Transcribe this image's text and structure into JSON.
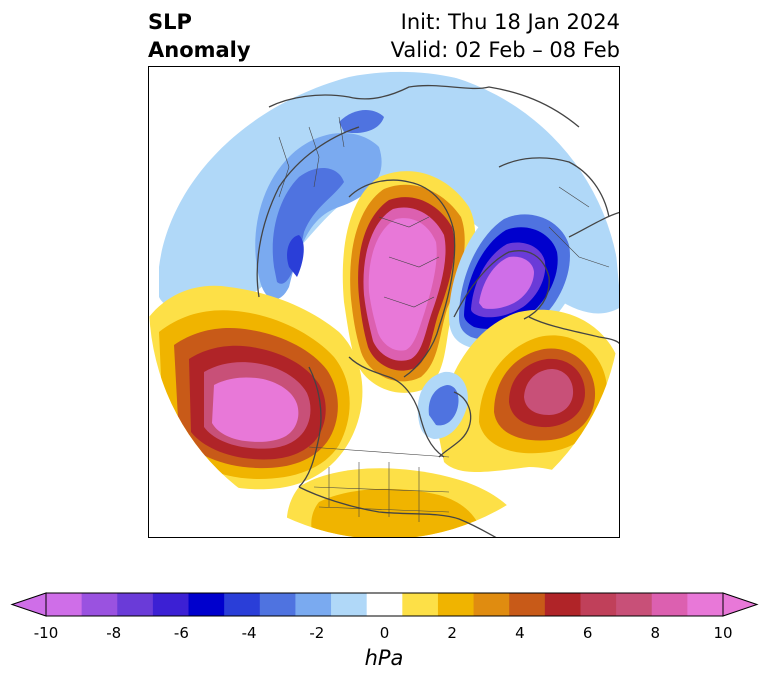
{
  "title": {
    "left_line1": "SLP",
    "left_line2": "Anomaly",
    "right_line1": "Init: Thu 18 Jan 2024",
    "right_line2": "Valid: 02 Feb – 08 Feb"
  },
  "map": {
    "projection": "north-polar-stereographic",
    "features": [
      "coastlines",
      "country-borders",
      "us-state-borders"
    ],
    "anomaly_centers": [
      {
        "region": "Greenland / Arctic",
        "sign": "positive",
        "max_hpa": 10
      },
      {
        "region": "Northeast Pacific / Alaska",
        "sign": "positive",
        "max_hpa": 10
      },
      {
        "region": "North Atlantic",
        "sign": "positive",
        "max_hpa": 8
      },
      {
        "region": "Scandinavia / Northern Europe",
        "sign": "negative",
        "min_hpa": -10
      },
      {
        "region": "Siberia",
        "sign": "negative",
        "min_hpa": -6
      },
      {
        "region": "Hudson Bay / Labrador",
        "sign": "negative",
        "min_hpa": -5
      }
    ]
  },
  "colorbar": {
    "unit": "hPa",
    "ticks": [
      "-10",
      "-8",
      "-6",
      "-4",
      "-2",
      "0",
      "2",
      "4",
      "6",
      "8",
      "10"
    ],
    "levels": [
      -10,
      -9,
      -8,
      -7,
      -6,
      -5,
      -4,
      -3,
      -2,
      -1,
      1,
      2,
      3,
      4,
      5,
      6,
      7,
      8,
      9,
      10
    ],
    "colors": [
      "#cf6ee8",
      "#9a52e0",
      "#6a3bd8",
      "#3c20d4",
      "#0000cd",
      "#2a3ed8",
      "#4f73e0",
      "#7aaaf0",
      "#b0d8f8",
      "#ffffff",
      "#fde047",
      "#f0b400",
      "#e08c10",
      "#c85a18",
      "#b02428",
      "#c0405a",
      "#c85078",
      "#dc60b0",
      "#e878d8"
    ],
    "extend": "both"
  }
}
